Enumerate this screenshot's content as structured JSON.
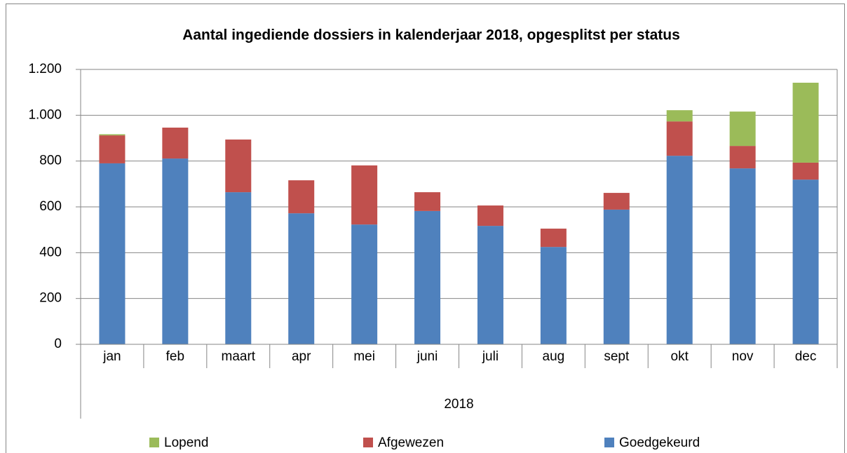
{
  "chart_data": {
    "type": "stacked_bar",
    "title": "Aantal ingediende dossiers in kalenderjaar 2018, opgesplitst per status",
    "categories": [
      "jan",
      "feb",
      "maart",
      "apr",
      "mei",
      "juni",
      "juli",
      "aug",
      "sept",
      "okt",
      "nov",
      "dec"
    ],
    "x_group_label": "2018",
    "series": [
      {
        "name": "Goedgekeurd",
        "color": "#4f81bd",
        "values": [
          790,
          811,
          664,
          572,
          523,
          582,
          517,
          425,
          588,
          823,
          768,
          719
        ]
      },
      {
        "name": "Afgewezen",
        "color": "#c0504d",
        "values": [
          122,
          135,
          230,
          144,
          258,
          82,
          89,
          80,
          73,
          150,
          98,
          74
        ]
      },
      {
        "name": "Lopend",
        "color": "#9bbb59",
        "values": [
          5,
          0,
          0,
          0,
          0,
          0,
          0,
          0,
          0,
          49,
          150,
          349
        ]
      }
    ],
    "ylim": [
      0,
      1200
    ],
    "yticks": [
      0,
      200,
      400,
      600,
      800,
      {
        "value": 1000,
        "label": "1.000"
      },
      {
        "value": 1200,
        "label": "1.200"
      }
    ],
    "grid": true,
    "legend": "bottom"
  }
}
